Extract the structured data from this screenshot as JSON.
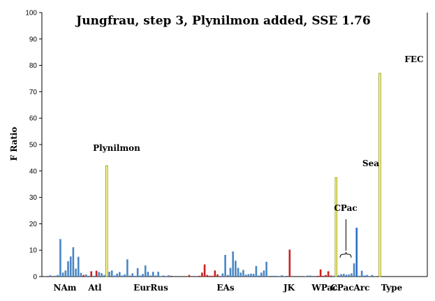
{
  "chart_data": {
    "type": "bar",
    "title": "Jungfrau, step 3, Plynilmon added, SSE 1.76",
    "ylabel": "F Ratio",
    "xlabel": "",
    "ylim": [
      0,
      100
    ],
    "yticks": [
      0,
      10,
      20,
      30,
      40,
      50,
      60,
      70,
      80,
      90,
      100
    ],
    "grid": false,
    "colors": {
      "blue": "#4a86c5",
      "red": "#cc1f1f",
      "yellow": "#ffff99",
      "dark_blue": "#2a6fc0"
    },
    "values": [
      0.2,
      0,
      0.5,
      0,
      0.3,
      0.6,
      14.2,
      1.5,
      2.3,
      5.8,
      7.6,
      11.1,
      3.0,
      7.5,
      1.4,
      0.6,
      0.8,
      0.3,
      2.0,
      0.3,
      2.2,
      1.7,
      1.3,
      0.6,
      42.0,
      1.8,
      2.3,
      0.4,
      1.1,
      1.7,
      0.4,
      0.8,
      6.5,
      0.4,
      1.2,
      0.3,
      3.2,
      0.4,
      1.0,
      4.2,
      1.8,
      0.4,
      1.8,
      0.4,
      1.8,
      0.2,
      0.4,
      0.2,
      0.5,
      0.3,
      0,
      0,
      0,
      0,
      0,
      0,
      0.6,
      0,
      0,
      0,
      0.3,
      1.5,
      4.6,
      0.6,
      0.3,
      0.3,
      2.3,
      0.8,
      0,
      1.2,
      8.2,
      0.6,
      3.3,
      9.5,
      6.0,
      3.3,
      1.5,
      2.5,
      0.7,
      0.9,
      1.1,
      1.0,
      4.0,
      0.4,
      1.5,
      2.3,
      5.6,
      0,
      0.3,
      0.3,
      0,
      0.2,
      0.5,
      0.2,
      0.3,
      10.2,
      0,
      0,
      0,
      0,
      0,
      0.2,
      0.4,
      0.4,
      0,
      0,
      0.3,
      2.7,
      0.3,
      0.6,
      2.0,
      0.4,
      0.3,
      37.5,
      0.5,
      0.9,
      1.0,
      0.7,
      0.8,
      1.2,
      5.0,
      18.5,
      0.3,
      2.2,
      0.4,
      0.6,
      0.2,
      0.6,
      0.2,
      0,
      77.0
    ],
    "bar_colors": [
      "blue",
      "blue",
      "blue",
      "blue",
      "blue",
      "blue",
      "blue",
      "blue",
      "blue",
      "blue",
      "blue",
      "blue",
      "blue",
      "blue",
      "blue",
      "red",
      "blue",
      "blue",
      "red",
      "blue",
      "red",
      "blue",
      "blue",
      "blue",
      "yellow",
      "blue",
      "blue",
      "blue",
      "blue",
      "blue",
      "blue",
      "blue",
      "blue",
      "blue",
      "blue",
      "blue",
      "blue",
      "blue",
      "blue",
      "blue",
      "blue",
      "blue",
      "blue",
      "blue",
      "blue",
      "blue",
      "blue",
      "blue",
      "blue",
      "red",
      "red",
      "red",
      "red",
      "red",
      "red",
      "red",
      "red",
      "red",
      "red",
      "red",
      "red",
      "red",
      "red",
      "red",
      "red",
      "red",
      "red",
      "red",
      "red",
      "blue",
      "blue",
      "blue",
      "blue",
      "blue",
      "blue",
      "blue",
      "blue",
      "blue",
      "blue",
      "blue",
      "blue",
      "blue",
      "blue",
      "blue",
      "blue",
      "blue",
      "blue",
      "blue",
      "blue",
      "blue",
      "blue",
      "blue",
      "blue",
      "blue",
      "blue",
      "red",
      "blue",
      "blue",
      "blue",
      "blue",
      "blue",
      "blue",
      "blue",
      "blue",
      "blue",
      "blue",
      "red",
      "red",
      "red",
      "red",
      "red",
      "red",
      "blue",
      "yellow",
      "blue",
      "blue",
      "blue",
      "blue",
      "blue",
      "blue",
      "blue",
      "dark_blue",
      "blue",
      "blue",
      "blue",
      "blue",
      "blue",
      "blue",
      "blue",
      "blue",
      "yellow"
    ],
    "group_labels": [
      "NAm",
      "Atl",
      "EurRus",
      "EAs",
      "JK",
      "WPac",
      "CPac",
      "Arc",
      "Type"
    ],
    "annotations": [
      "Plynilmon",
      "Sea",
      "FEC"
    ]
  }
}
